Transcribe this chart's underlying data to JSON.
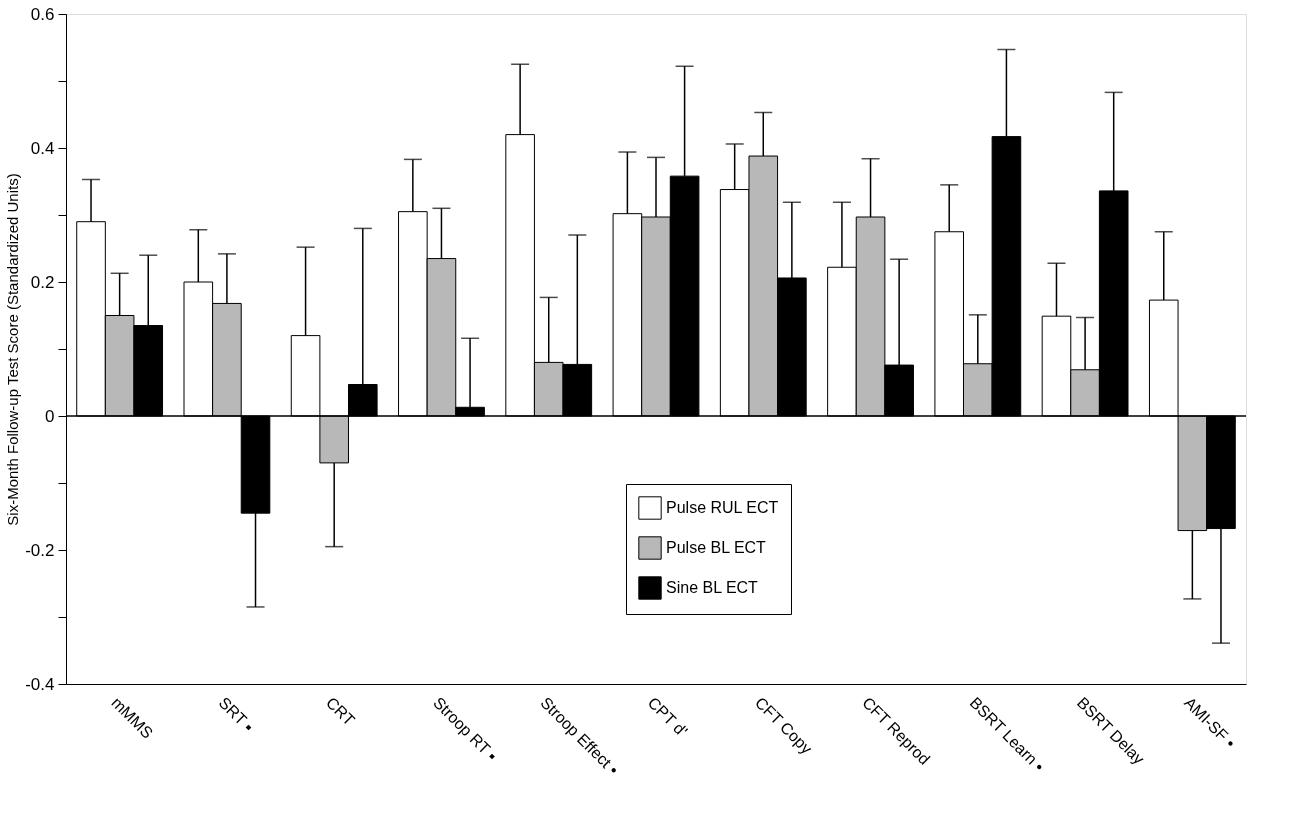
{
  "chart_data": {
    "type": "bar",
    "ylabel": "Six-Month Follow-up Test Score (Standardized Units)",
    "categories": [
      "mMMS",
      "SRT ▪",
      "CRT",
      "Stroop RT ▪",
      "Stroop Effect •",
      "CPT d'",
      "CFT Copy",
      "CFT Reprod",
      "BSRT Learn •",
      "BSRT Delay",
      "AMI-SF •"
    ],
    "series": [
      {
        "name": "Pulse RUL ECT",
        "color": "#ffffff",
        "values": [
          0.29,
          0.2,
          0.12,
          0.305,
          0.42,
          0.302,
          0.338,
          0.222,
          0.275,
          0.149,
          0.173
        ],
        "errors": [
          [
            0.29,
            0.353
          ],
          [
            0.2,
            0.278
          ],
          [
            0.12,
            0.252
          ],
          [
            0.305,
            0.383
          ],
          [
            0.42,
            0.525
          ],
          [
            0.302,
            0.394
          ],
          [
            0.338,
            0.406
          ],
          [
            0.222,
            0.319
          ],
          [
            0.275,
            0.345
          ],
          [
            0.149,
            0.228
          ],
          [
            0.173,
            0.275
          ]
        ]
      },
      {
        "name": "Pulse BL ECT",
        "color": "#b8b8b8",
        "values": [
          0.15,
          0.168,
          -0.07,
          0.235,
          0.08,
          0.297,
          0.388,
          0.297,
          0.078,
          0.069,
          -0.171
        ],
        "errors": [
          [
            0.15,
            0.213
          ],
          [
            0.168,
            0.242
          ],
          [
            -0.195,
            -0.07
          ],
          [
            0.235,
            0.31
          ],
          [
            0.08,
            0.177
          ],
          [
            0.297,
            0.386
          ],
          [
            0.388,
            0.453
          ],
          [
            0.297,
            0.384
          ],
          [
            0.078,
            0.151
          ],
          [
            0.069,
            0.147
          ],
          [
            -0.273,
            -0.171
          ]
        ]
      },
      {
        "name": "Sine BL ECT",
        "color": "#000000",
        "values": [
          0.135,
          -0.145,
          0.047,
          0.013,
          0.077,
          0.358,
          0.206,
          0.076,
          0.417,
          0.336,
          -0.168
        ],
        "errors": [
          [
            0.135,
            0.24
          ],
          [
            -0.285,
            -0.145
          ],
          [
            0.047,
            0.28
          ],
          [
            0.013,
            0.116
          ],
          [
            0.077,
            0.27
          ],
          [
            0.358,
            0.522
          ],
          [
            0.206,
            0.319
          ],
          [
            0.076,
            0.234
          ],
          [
            0.417,
            0.547
          ],
          [
            0.336,
            0.483
          ],
          [
            -0.339,
            -0.168
          ]
        ]
      }
    ],
    "ylim": [
      -0.4,
      0.6
    ],
    "yticks": [
      -0.4,
      {
        "value": -0.3,
        "label": null
      },
      -0.2,
      {
        "value": -0.1,
        "label": null
      },
      0,
      {
        "value": 0.1,
        "label": null
      },
      0.2,
      {
        "value": 0.3,
        "label": null
      },
      0.4,
      {
        "value": 0.5,
        "label": null
      },
      0.6
    ],
    "ref_lines": [
      {
        "axis": "y",
        "value": 0,
        "label": null,
        "color": "#000000"
      }
    ],
    "grid": false,
    "legend": "center"
  }
}
